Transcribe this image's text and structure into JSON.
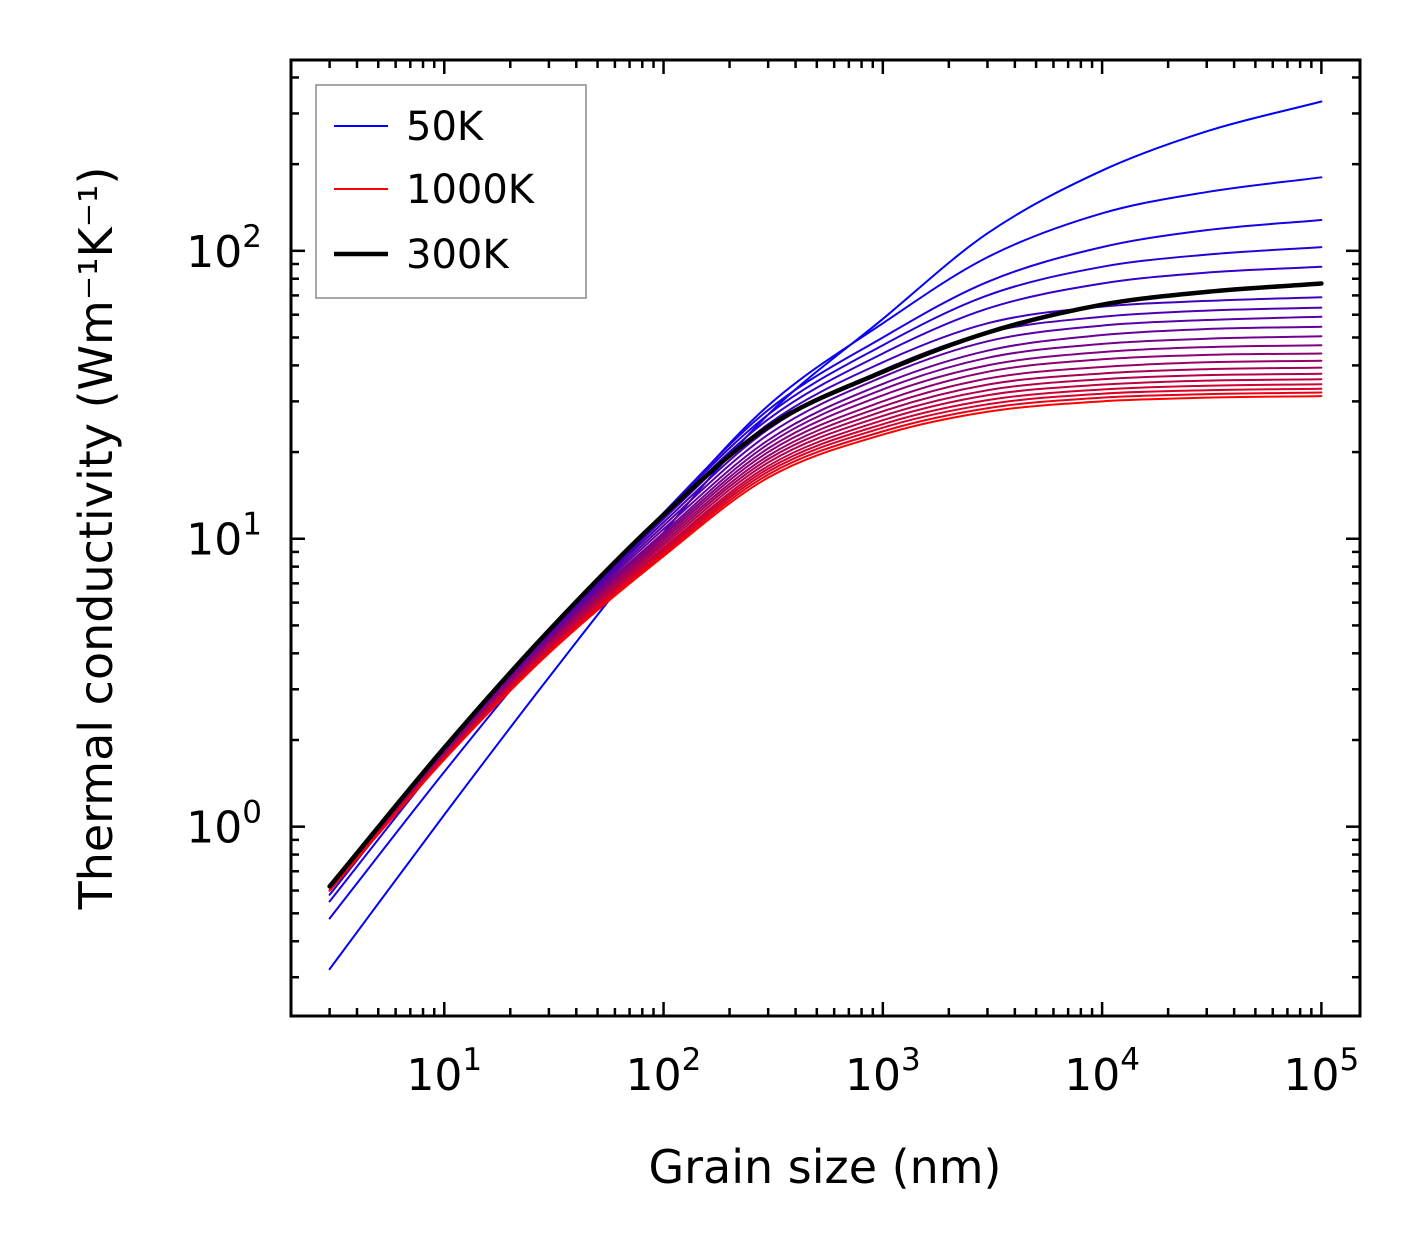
{
  "chart_data": {
    "type": "line",
    "xscale": "log",
    "yscale": "log",
    "xlabel": "Grain size (nm)",
    "ylabel": "Thermal conductivity (Wm⁻¹K⁻¹)",
    "xlim": [
      2,
      150000
    ],
    "ylim": [
      0.22,
      460
    ],
    "x_ticks": [
      {
        "base": "10",
        "exp": "1"
      },
      {
        "base": "10",
        "exp": "2"
      },
      {
        "base": "10",
        "exp": "3"
      },
      {
        "base": "10",
        "exp": "4"
      },
      {
        "base": "10",
        "exp": "5"
      }
    ],
    "y_ticks": [
      {
        "base": "10",
        "exp": "0"
      },
      {
        "base": "10",
        "exp": "1"
      },
      {
        "base": "10",
        "exp": "2"
      }
    ],
    "x": [
      3,
      10,
      30,
      100,
      300,
      1000,
      3000,
      10000,
      30000,
      100000
    ],
    "series": [
      {
        "name": "50K",
        "color": "#0000ff",
        "values": [
          0.32,
          1.1,
          3.3,
          10.5,
          27,
          58,
          115,
          190,
          260,
          330
        ]
      },
      {
        "name": "",
        "color": "#0d00f2",
        "values": [
          0.48,
          1.55,
          4.3,
          12,
          29,
          56,
          95,
          135,
          160,
          180
        ]
      },
      {
        "name": "",
        "color": "#1a00e5",
        "values": [
          0.55,
          1.75,
          4.6,
          12.3,
          28,
          50,
          78,
          103,
          118,
          128
        ]
      },
      {
        "name": "",
        "color": "#2700d8",
        "values": [
          0.58,
          1.82,
          4.7,
          12.2,
          27,
          47,
          70,
          88,
          97,
          103
        ]
      },
      {
        "name": "",
        "color": "#3300cc",
        "values": [
          0.6,
          1.85,
          4.75,
          12,
          26,
          44,
          63,
          77,
          84,
          88
        ]
      },
      {
        "name": "",
        "color": "#4000bf",
        "values": [
          0.6,
          1.85,
          4.7,
          11.7,
          25,
          41,
          56,
          64,
          67,
          69
        ]
      },
      {
        "name": "",
        "color": "#4c00b2",
        "values": [
          0.6,
          1.84,
          4.65,
          11.4,
          24,
          38.5,
          52,
          59,
          62,
          63.5
        ]
      },
      {
        "name": "",
        "color": "#5900a6",
        "values": [
          0.6,
          1.83,
          4.6,
          11.1,
          23,
          36.5,
          48.5,
          55,
          57.5,
          59
        ]
      },
      {
        "name": "",
        "color": "#660099",
        "values": [
          0.6,
          1.82,
          4.55,
          10.8,
          22,
          34.5,
          45,
          51,
          53.5,
          54.5
        ]
      },
      {
        "name": "",
        "color": "#73008c",
        "values": [
          0.6,
          1.81,
          4.5,
          10.5,
          21.3,
          33,
          42.5,
          47.5,
          49.5,
          50.5
        ]
      },
      {
        "name": "",
        "color": "#80007f",
        "values": [
          0.6,
          1.8,
          4.45,
          10.3,
          20.6,
          31.5,
          40,
          44.5,
          46.3,
          47
        ]
      },
      {
        "name": "",
        "color": "#8c0073",
        "values": [
          0.6,
          1.79,
          4.4,
          10.1,
          20,
          30,
          38,
          42,
          43.5,
          44
        ]
      },
      {
        "name": "",
        "color": "#990066",
        "values": [
          0.6,
          1.78,
          4.35,
          9.9,
          19.4,
          28.8,
          36,
          39.5,
          41,
          41.5
        ]
      },
      {
        "name": "",
        "color": "#a60059",
        "values": [
          0.6,
          1.77,
          4.3,
          9.7,
          18.9,
          27.7,
          34.3,
          37.5,
          38.8,
          39.3
        ]
      },
      {
        "name": "",
        "color": "#b2004c",
        "values": [
          0.6,
          1.76,
          4.25,
          9.5,
          18.4,
          26.7,
          32.8,
          35.8,
          37,
          37.4
        ]
      },
      {
        "name": "",
        "color": "#bf0040",
        "values": [
          0.6,
          1.75,
          4.2,
          9.3,
          17.9,
          25.8,
          31.5,
          34.3,
          35.4,
          35.8
        ]
      },
      {
        "name": "",
        "color": "#cc0033",
        "values": [
          0.6,
          1.74,
          4.15,
          9.15,
          17.5,
          25,
          30.3,
          33,
          34,
          34.4
        ]
      },
      {
        "name": "",
        "color": "#d80027",
        "values": [
          0.6,
          1.73,
          4.1,
          9,
          17.1,
          24.3,
          29.3,
          31.9,
          32.8,
          33.2
        ]
      },
      {
        "name": "",
        "color": "#e5001a",
        "values": [
          0.6,
          1.72,
          4.05,
          8.85,
          16.7,
          23.6,
          28.4,
          30.9,
          31.8,
          32.2
        ]
      },
      {
        "name": "1000K",
        "color": "#ff0000",
        "values": [
          0.6,
          1.71,
          4.0,
          8.7,
          16.3,
          23,
          27.6,
          30,
          30.9,
          31.3
        ]
      },
      {
        "name": "300K",
        "color": "#000000",
        "bold": true,
        "values": [
          0.62,
          1.88,
          4.8,
          12.1,
          24.5,
          38,
          52,
          65,
          72,
          77
        ]
      }
    ],
    "legend": {
      "position": "top-left",
      "entries": [
        {
          "label": "50K",
          "color": "#0000ff",
          "bold": false
        },
        {
          "label": "1000K",
          "color": "#ff0000",
          "bold": false
        },
        {
          "label": "300K",
          "color": "#000000",
          "bold": true
        }
      ]
    },
    "grid": false
  }
}
